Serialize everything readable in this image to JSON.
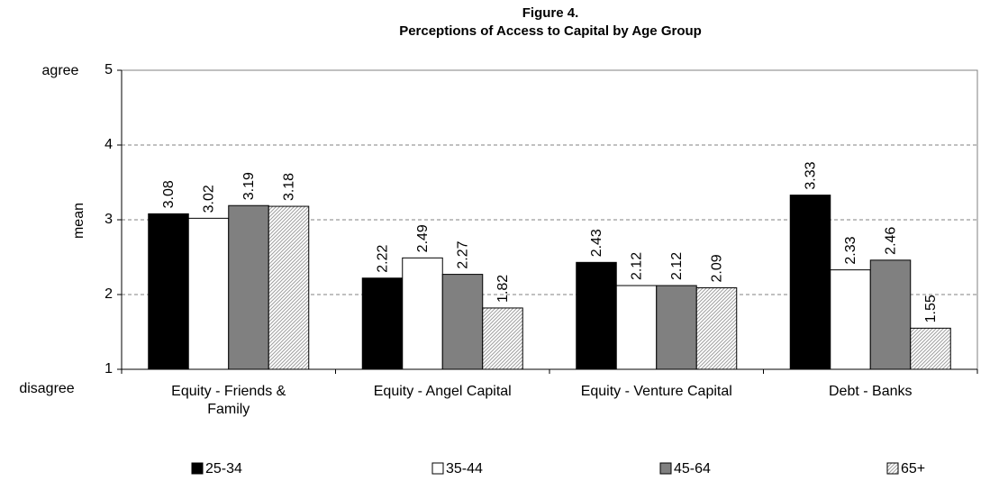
{
  "chart_data": {
    "type": "bar",
    "title": "Figure 4.",
    "subtitle": "Perceptions of Access to Capital by Age Group",
    "ylabel": "mean",
    "annotations": [
      "agree",
      "disagree"
    ],
    "categories": [
      "Equity - Friends & Family",
      "Equity - Angel Capital",
      "Equity - Venture Capital",
      "Debt - Banks"
    ],
    "series": [
      {
        "name": "25-34",
        "color": "#000000",
        "values": [
          3.08,
          2.22,
          2.43,
          3.33
        ]
      },
      {
        "name": "35-44",
        "color": "#ffffff",
        "values": [
          3.02,
          2.49,
          2.12,
          2.33
        ]
      },
      {
        "name": "45-64",
        "color": "#808080",
        "values": [
          3.19,
          2.27,
          2.12,
          2.46
        ]
      },
      {
        "name": "65+",
        "color": "#c8c8c8",
        "pattern": "hatch",
        "values": [
          3.18,
          1.82,
          2.09,
          1.55
        ]
      }
    ],
    "ylim": [
      1,
      5
    ],
    "yticks": [
      1,
      2,
      3,
      4,
      5
    ],
    "grid": true,
    "legend": "bottom"
  }
}
